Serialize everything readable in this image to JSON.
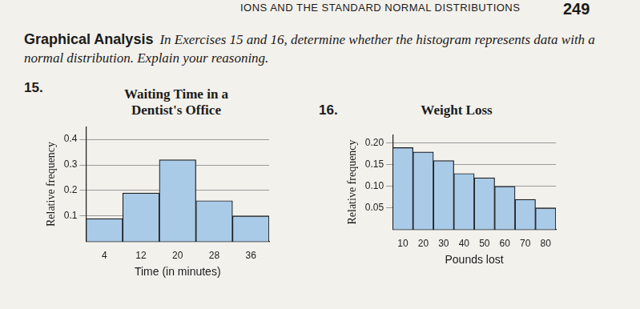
{
  "page": {
    "running_head": "IONS AND THE STANDARD NORMAL DISTRIBUTIONS",
    "page_number": "249",
    "heading": "Graphical Analysis",
    "instructions": "In Exercises 15 and 16, determine whether the histogram represents data with a normal distribution. Explain your reasoning."
  },
  "chart_data": [
    {
      "exercise": "15.",
      "type": "bar",
      "title": "Waiting Time in a Dentist's Office",
      "categories": [
        "4",
        "12",
        "20",
        "28",
        "36"
      ],
      "values": [
        0.09,
        0.19,
        0.32,
        0.16,
        0.1
      ],
      "color": "#a9cbe8",
      "xlabel": "Time (in minutes)",
      "ylabel": "Relative frequency",
      "ylim": [
        0,
        0.45
      ],
      "yticks": [
        0.1,
        0.2,
        0.3,
        0.4
      ],
      "grid": true
    },
    {
      "exercise": "16.",
      "type": "bar",
      "title": "Weight Loss",
      "categories": [
        "10",
        "20",
        "30",
        "40",
        "50",
        "60",
        "70",
        "80"
      ],
      "values": [
        0.19,
        0.18,
        0.16,
        0.13,
        0.12,
        0.1,
        0.07,
        0.05
      ],
      "color": "#a9cbe8",
      "xlabel": "Pounds lost",
      "ylabel": "Relative frequency",
      "ylim": [
        0,
        0.22
      ],
      "yticks": [
        {
          "value": 0.05,
          "label": "0.05"
        },
        {
          "value": 0.1,
          "label": "0.10"
        },
        {
          "value": 0.15,
          "label": "0.15"
        },
        {
          "value": 0.2,
          "label": "0.20"
        }
      ],
      "grid": true
    }
  ]
}
